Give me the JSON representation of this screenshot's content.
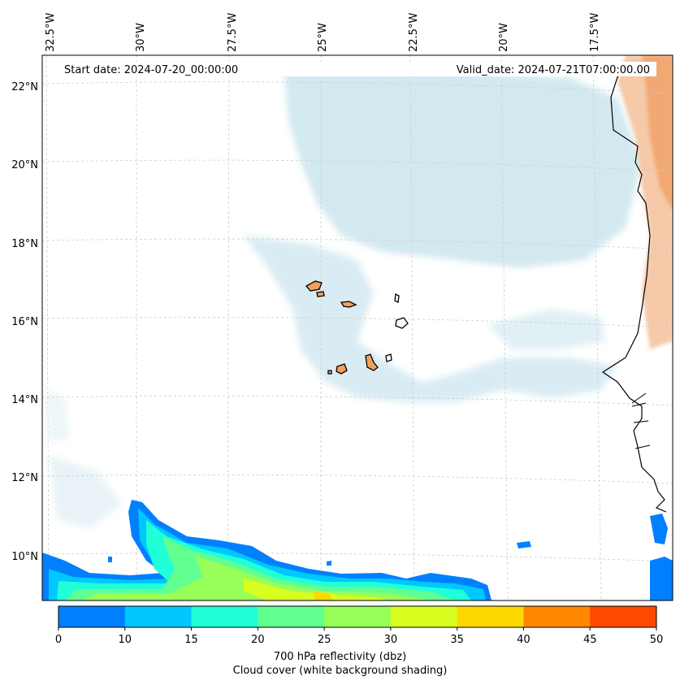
{
  "header": {
    "start_date": "Start date: 2024-07-20_00:00:00",
    "valid_date": "Valid_date: 2024-07-21T07:00:00.00"
  },
  "axes": {
    "lon_labels": [
      "32.5°W",
      "30°W",
      "27.5°W",
      "25°W",
      "22.5°W",
      "20°W",
      "17.5°W"
    ],
    "lat_labels": [
      "22°N",
      "20°N",
      "18°N",
      "16°N",
      "14°N",
      "12°N",
      "10°N"
    ]
  },
  "colorbar": {
    "ticks": [
      "0",
      "10",
      "15",
      "20",
      "25",
      "30",
      "35",
      "40",
      "45",
      "50"
    ],
    "colors": [
      "#0080ff",
      "#00c8ff",
      "#20ffd8",
      "#60ff90",
      "#98ff58",
      "#d8ff20",
      "#ffd800",
      "#ff8800",
      "#ff4800"
    ],
    "label_line1": "700 hPa reflectivity (dbz)",
    "label_line2": "Cloud cover (white background shading)"
  },
  "colors": {
    "cloud": "#b8dce8",
    "land": "#f0a060",
    "coast": "#000000",
    "grid": "#cccccc"
  }
}
